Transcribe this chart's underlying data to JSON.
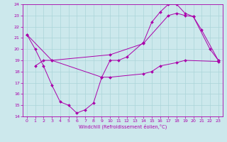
{
  "xlabel": "Windchill (Refroidissement éolien,°C)",
  "bg_color": "#cce8ec",
  "line_color": "#aa00aa",
  "grid_color": "#aad4d8",
  "xlim": [
    -0.5,
    23.5
  ],
  "ylim": [
    14,
    24
  ],
  "xticks": [
    0,
    1,
    2,
    3,
    4,
    5,
    6,
    7,
    8,
    9,
    10,
    11,
    12,
    13,
    14,
    15,
    16,
    17,
    18,
    19,
    20,
    21,
    22,
    23
  ],
  "yticks": [
    14,
    15,
    16,
    17,
    18,
    19,
    20,
    21,
    22,
    23,
    24
  ],
  "line1_x": [
    0,
    1,
    2,
    3,
    4,
    5,
    6,
    7,
    8,
    9,
    10,
    11,
    12,
    14,
    15,
    16,
    17,
    18,
    19,
    20,
    22,
    23
  ],
  "line1_y": [
    21.3,
    20.0,
    18.5,
    16.8,
    15.3,
    15.0,
    14.3,
    14.6,
    15.2,
    17.5,
    19.0,
    19.0,
    19.3,
    20.6,
    22.4,
    23.3,
    24.0,
    24.0,
    23.2,
    22.9,
    20.0,
    19.0
  ],
  "line2_x": [
    1,
    2,
    3,
    9,
    10,
    14,
    15,
    16,
    18,
    19,
    23
  ],
  "line2_y": [
    18.5,
    19.0,
    19.0,
    17.5,
    17.5,
    17.8,
    18.0,
    18.5,
    18.8,
    19.0,
    18.9
  ],
  "line3_x": [
    0,
    3,
    10,
    14,
    17,
    18,
    19,
    20,
    21,
    23
  ],
  "line3_y": [
    21.3,
    19.0,
    19.5,
    20.5,
    23.0,
    23.2,
    23.0,
    22.9,
    21.7,
    19.0
  ]
}
